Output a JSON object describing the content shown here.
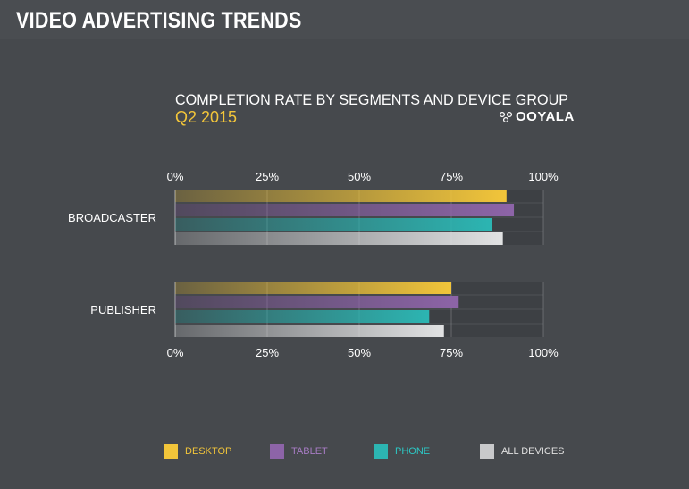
{
  "header": {
    "title": "VIDEO ADVERTISING TRENDS"
  },
  "chart_header": {
    "title": "COMPLETION RATE BY SEGMENTS AND DEVICE GROUP",
    "subtitle": "Q2 2015",
    "brand": "OOYALA"
  },
  "colors": {
    "desktop": "#f2c53a",
    "tablet": "#8d64a8",
    "phone": "#2cb5b2",
    "all_devices": "#e1e2e3",
    "track": "#3d4044",
    "grid": "#8a8c8f",
    "text": "#ffffff"
  },
  "chart_data": {
    "type": "bar",
    "orientation": "horizontal",
    "title": "COMPLETION RATE BY SEGMENTS AND DEVICE GROUP",
    "subtitle": "Q2 2015",
    "categories": [
      "BROADCASTER",
      "PUBLISHER"
    ],
    "series": [
      {
        "name": "DESKTOP",
        "color": "#f2c53a",
        "values": [
          90,
          75
        ]
      },
      {
        "name": "TABLET",
        "color": "#8d64a8",
        "values": [
          92,
          77
        ]
      },
      {
        "name": "PHONE",
        "color": "#2cb5b2",
        "values": [
          86,
          69
        ]
      },
      {
        "name": "ALL DEVICES",
        "color": "#e1e2e3",
        "values": [
          89,
          73
        ]
      }
    ],
    "xlim": [
      0,
      100
    ],
    "ticks": [
      "0%",
      "25%",
      "50%",
      "75%",
      "100%"
    ],
    "tick_values": [
      0,
      25,
      50,
      75,
      100
    ],
    "grid": true,
    "legend_position": "bottom"
  }
}
